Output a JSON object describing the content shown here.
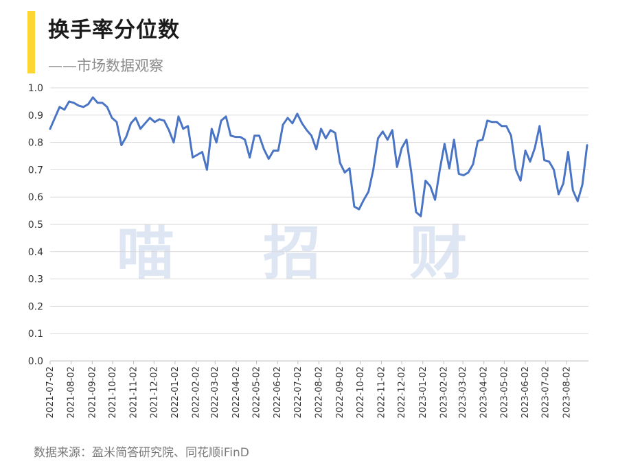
{
  "header": {
    "title": "换手率分位数",
    "subtitle": "——市场数据观察",
    "accent_color": "#fcd733"
  },
  "watermark": "喵 招 财",
  "source": "数据来源：盈米简答研究院、同花顺iFinD",
  "chart_data": {
    "type": "line",
    "title": "换手率分位数",
    "xlabel": "",
    "ylabel": "",
    "ylim": [
      0,
      1.0
    ],
    "yticks": [
      "0.0",
      "0.1",
      "0.2",
      "0.3",
      "0.4",
      "0.5",
      "0.6",
      "0.7",
      "0.8",
      "0.9",
      "1.0"
    ],
    "xticks": [
      "2021-07-02",
      "2021-08-02",
      "2021-09-02",
      "2021-10-02",
      "2021-11-02",
      "2021-12-02",
      "2022-01-02",
      "2022-02-02",
      "2022-03-02",
      "2022-04-02",
      "2022-05-02",
      "2022-06-02",
      "2022-07-02",
      "2022-08-02",
      "2022-09-02",
      "2022-10-02",
      "2022-11-02",
      "2022-12-02",
      "2023-01-02",
      "2023-02-02",
      "2023-03-02",
      "2023-04-02",
      "2023-05-02",
      "2023-06-02",
      "2023-07-02",
      "2023-08-02"
    ],
    "x_start": "2021-07-02",
    "x_end": "2023-09-03",
    "grid": "horizontal",
    "line_color": "#4a74c4",
    "series": [
      {
        "x": [
          "2021-07-02",
          "2021-07-09",
          "2021-07-16",
          "2021-07-23",
          "2021-07-30",
          "2021-08-06",
          "2021-08-13",
          "2021-08-20",
          "2021-08-27",
          "2021-09-03",
          "2021-09-10",
          "2021-09-17",
          "2021-09-24",
          "2021-10-01",
          "2021-10-08",
          "2021-10-15",
          "2021-10-22",
          "2021-10-29",
          "2021-11-05",
          "2021-11-12",
          "2021-11-19",
          "2021-11-26",
          "2021-12-03",
          "2021-12-10",
          "2021-12-17",
          "2021-12-24",
          "2021-12-31",
          "2022-01-07",
          "2022-01-14",
          "2022-01-21",
          "2022-01-28",
          "2022-02-04",
          "2022-02-11",
          "2022-02-18",
          "2022-02-25",
          "2022-03-04",
          "2022-03-11",
          "2022-03-18",
          "2022-03-25",
          "2022-04-01",
          "2022-04-08",
          "2022-04-15",
          "2022-04-22",
          "2022-04-29",
          "2022-05-06",
          "2022-05-13",
          "2022-05-20",
          "2022-05-27",
          "2022-06-03",
          "2022-06-10",
          "2022-06-17",
          "2022-06-24",
          "2022-07-01",
          "2022-07-08",
          "2022-07-15",
          "2022-07-22",
          "2022-07-29",
          "2022-08-05",
          "2022-08-12",
          "2022-08-19",
          "2022-08-26",
          "2022-09-02",
          "2022-09-09",
          "2022-09-16",
          "2022-09-23",
          "2022-09-30",
          "2022-10-07",
          "2022-10-14",
          "2022-10-21",
          "2022-10-28",
          "2022-11-04",
          "2022-11-11",
          "2022-11-18",
          "2022-11-25",
          "2022-12-02",
          "2022-12-09",
          "2022-12-16",
          "2022-12-23",
          "2022-12-30",
          "2023-01-06",
          "2023-01-13",
          "2023-01-20",
          "2023-01-27",
          "2023-02-03",
          "2023-02-10",
          "2023-02-17",
          "2023-02-24",
          "2023-03-03",
          "2023-03-10",
          "2023-03-17",
          "2023-03-24",
          "2023-03-31",
          "2023-04-07",
          "2023-04-14",
          "2023-04-21",
          "2023-04-28",
          "2023-05-05",
          "2023-05-12",
          "2023-05-19",
          "2023-05-26",
          "2023-06-02",
          "2023-06-09",
          "2023-06-16",
          "2023-06-23",
          "2023-06-30",
          "2023-07-07",
          "2023-07-14",
          "2023-07-21",
          "2023-07-28",
          "2023-08-04",
          "2023-08-11",
          "2023-08-18",
          "2023-08-25",
          "2023-09-01"
        ],
        "values": [
          0.85,
          0.89,
          0.93,
          0.92,
          0.95,
          0.945,
          0.935,
          0.93,
          0.94,
          0.965,
          0.945,
          0.945,
          0.93,
          0.89,
          0.875,
          0.79,
          0.82,
          0.87,
          0.89,
          0.85,
          0.87,
          0.89,
          0.875,
          0.885,
          0.88,
          0.845,
          0.8,
          0.895,
          0.85,
          0.86,
          0.745,
          0.755,
          0.765,
          0.7,
          0.85,
          0.8,
          0.88,
          0.895,
          0.825,
          0.82,
          0.82,
          0.81,
          0.745,
          0.825,
          0.825,
          0.775,
          0.74,
          0.77,
          0.77,
          0.865,
          0.89,
          0.87,
          0.905,
          0.87,
          0.845,
          0.825,
          0.775,
          0.85,
          0.815,
          0.845,
          0.835,
          0.725,
          0.69,
          0.705,
          0.565,
          0.555,
          0.59,
          0.62,
          0.7,
          0.815,
          0.84,
          0.81,
          0.845,
          0.71,
          0.78,
          0.81,
          0.69,
          0.545,
          0.53,
          0.66,
          0.64,
          0.59,
          0.7,
          0.795,
          0.705,
          0.81,
          0.685,
          0.68,
          0.69,
          0.72,
          0.805,
          0.81,
          0.88,
          0.875,
          0.875,
          0.86,
          0.86,
          0.825,
          0.7,
          0.66,
          0.77,
          0.73,
          0.78,
          0.86,
          0.735,
          0.73,
          0.7,
          0.61,
          0.65,
          0.765,
          0.625,
          0.585,
          0.645,
          0.79
        ]
      }
    ]
  }
}
